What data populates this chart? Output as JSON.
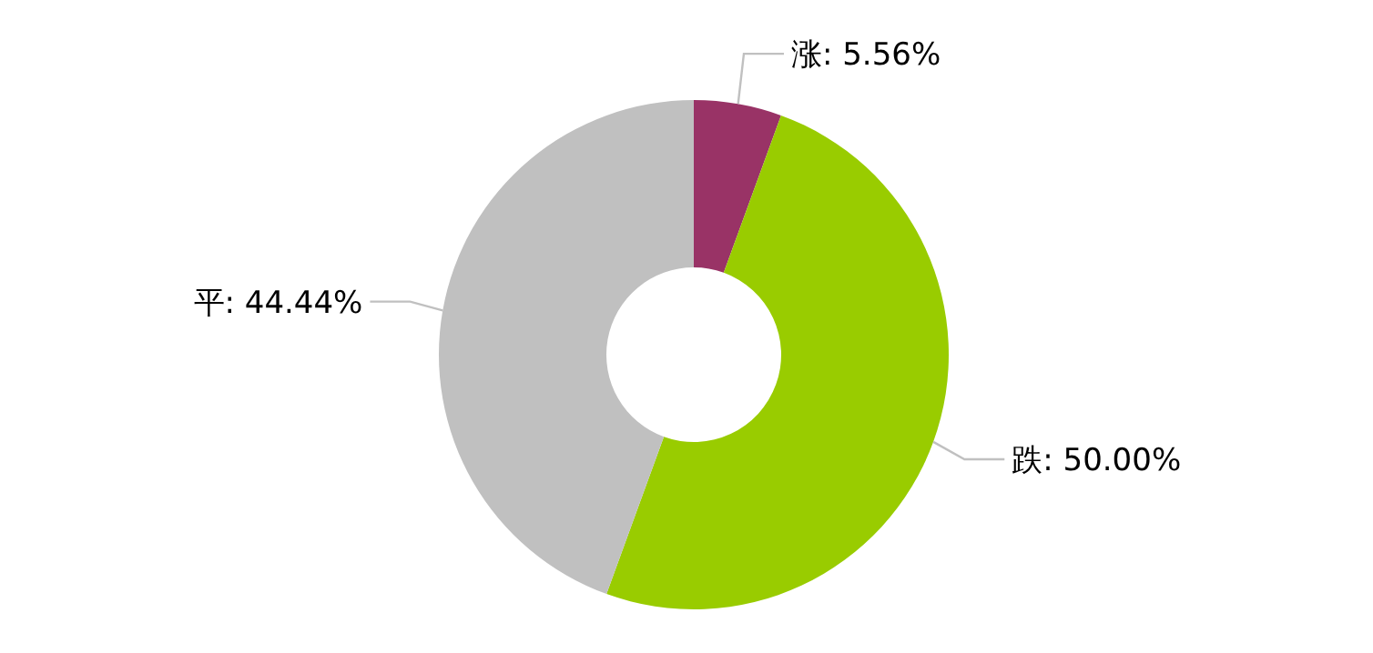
{
  "chart_data": {
    "type": "donut",
    "categories": [
      "涨",
      "跌",
      "平"
    ],
    "values": [
      5.56,
      50.0,
      44.44
    ],
    "value_labels": [
      ": 5.56%",
      ": 50.00%",
      ": 44.44%"
    ],
    "colors": [
      "#993366",
      "#99cc00",
      "#c0c0c0"
    ]
  }
}
